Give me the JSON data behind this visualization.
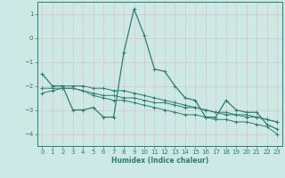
{
  "xlabel": "Humidex (Indice chaleur)",
  "xlim": [
    -0.5,
    23.5
  ],
  "ylim": [
    -4.5,
    1.5
  ],
  "yticks": [
    1,
    0,
    -1,
    -2,
    -3,
    -4
  ],
  "xticks": [
    0,
    1,
    2,
    3,
    4,
    5,
    6,
    7,
    8,
    9,
    10,
    11,
    12,
    13,
    14,
    15,
    16,
    17,
    18,
    19,
    20,
    21,
    22,
    23
  ],
  "bg_color": "#cce9e5",
  "line_color": "#2d7d72",
  "grid_color": "#c0d8d5",
  "lines": [
    {
      "x": [
        0,
        1,
        2,
        3,
        4,
        5,
        6,
        7,
        8,
        9,
        10,
        11,
        12,
        13,
        14,
        15,
        16,
        17,
        18,
        19,
        20,
        21,
        22,
        23
      ],
      "y": [
        -1.5,
        -2.0,
        -2.0,
        -3.0,
        -3.0,
        -2.9,
        -3.3,
        -3.3,
        -0.6,
        1.2,
        0.1,
        -1.3,
        -1.4,
        -2.0,
        -2.5,
        -2.6,
        -3.3,
        -3.3,
        -2.6,
        -3.0,
        -3.1,
        -3.1,
        -3.6,
        -3.8
      ]
    },
    {
      "x": [
        1,
        2,
        3,
        4,
        5,
        6,
        7,
        8,
        9,
        10,
        11,
        12,
        13,
        14,
        15,
        16,
        17,
        18,
        19,
        20,
        21,
        22,
        23
      ],
      "y": [
        -2.0,
        -2.0,
        -2.0,
        -2.0,
        -2.1,
        -2.1,
        -2.2,
        -2.2,
        -2.3,
        -2.4,
        -2.5,
        -2.6,
        -2.7,
        -2.8,
        -2.9,
        -3.0,
        -3.1,
        -3.2,
        -3.2,
        -3.3,
        -3.3,
        -3.4,
        -3.5
      ]
    },
    {
      "x": [
        0,
        1,
        2,
        3,
        4,
        5,
        6,
        7,
        8,
        9,
        10,
        11,
        12,
        13,
        14,
        15,
        16,
        17,
        18,
        19,
        20,
        21,
        22,
        23
      ],
      "y": [
        -2.1,
        -2.1,
        -2.1,
        -2.1,
        -2.2,
        -2.3,
        -2.4,
        -2.4,
        -2.5,
        -2.5,
        -2.6,
        -2.7,
        -2.7,
        -2.8,
        -2.9,
        -2.9,
        -3.0,
        -3.1,
        -3.1,
        -3.2,
        -3.2,
        -3.3,
        -3.4,
        -3.5
      ]
    },
    {
      "x": [
        0,
        1,
        2,
        3,
        4,
        5,
        6,
        7,
        8,
        9,
        10,
        11,
        12,
        13,
        14,
        15,
        16,
        17,
        18,
        19,
        20,
        21,
        22,
        23
      ],
      "y": [
        -2.3,
        -2.2,
        -2.1,
        -2.1,
        -2.2,
        -2.4,
        -2.5,
        -2.6,
        -2.6,
        -2.7,
        -2.8,
        -2.9,
        -3.0,
        -3.1,
        -3.2,
        -3.2,
        -3.3,
        -3.4,
        -3.4,
        -3.5,
        -3.5,
        -3.6,
        -3.7,
        -4.0
      ]
    }
  ]
}
